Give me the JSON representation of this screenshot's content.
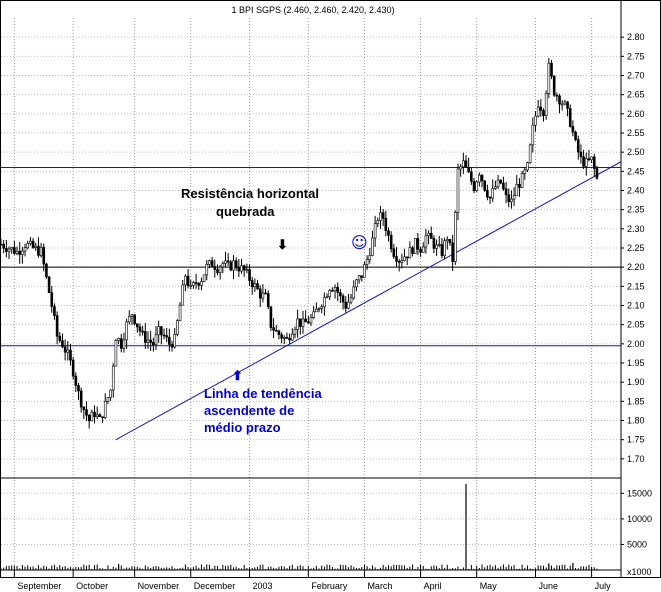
{
  "chart_data": {
    "type": "candlestick",
    "title": "1 BPI SGPS (2.460, 2.460, 2.420, 2.430)",
    "price_axis": {
      "ylim": [
        1.65,
        2.85
      ],
      "ticks": [
        "2.80",
        "2.75",
        "2.70",
        "2.65",
        "2.60",
        "2.55",
        "2.50",
        "2.45",
        "2.40",
        "2.35",
        "2.30",
        "2.25",
        "2.20",
        "2.15",
        "2.10",
        "2.05",
        "2.00",
        "1.95",
        "1.90",
        "1.85",
        "1.80",
        "1.75",
        "1.70"
      ]
    },
    "volume_axis": {
      "ylim": [
        0,
        18000
      ],
      "ticks": [
        "15000",
        "10000",
        "5000"
      ],
      "unit_label": "x1000"
    },
    "months": [
      {
        "label": "September",
        "x": 5
      },
      {
        "label": "October",
        "x": 27
      },
      {
        "label": "November",
        "x": 50
      },
      {
        "label": "December",
        "x": 71
      },
      {
        "label": "2003",
        "x": 93
      },
      {
        "label": "February",
        "x": 115
      },
      {
        "label": "March",
        "x": 136
      },
      {
        "label": "April",
        "x": 157
      },
      {
        "label": "May",
        "x": 178
      },
      {
        "label": "June",
        "x": 200
      },
      {
        "label": "July",
        "x": 221
      }
    ],
    "xlim": [
      0,
      232
    ],
    "price_points": [
      [
        0,
        2.26
      ],
      [
        3,
        2.25
      ],
      [
        6,
        2.24
      ],
      [
        9,
        2.26
      ],
      [
        12,
        2.25
      ],
      [
        15,
        2.24
      ],
      [
        17,
        2.17
      ],
      [
        19,
        2.1
      ],
      [
        21,
        2.02
      ],
      [
        23,
        2.0
      ],
      [
        25,
        1.97
      ],
      [
        27,
        1.93
      ],
      [
        29,
        1.87
      ],
      [
        31,
        1.83
      ],
      [
        33,
        1.8
      ],
      [
        35,
        1.82
      ],
      [
        37,
        1.8
      ],
      [
        39,
        1.84
      ],
      [
        41,
        1.88
      ],
      [
        43,
        2.02
      ],
      [
        45,
        2.0
      ],
      [
        47,
        2.05
      ],
      [
        49,
        2.08
      ],
      [
        51,
        2.05
      ],
      [
        53,
        2.02
      ],
      [
        55,
        2.01
      ],
      [
        57,
        2.0
      ],
      [
        59,
        2.03
      ],
      [
        61,
        2.02
      ],
      [
        63,
        2.0
      ],
      [
        65,
        2.01
      ],
      [
        67,
        2.1
      ],
      [
        69,
        2.18
      ],
      [
        71,
        2.14
      ],
      [
        73,
        2.16
      ],
      [
        75,
        2.17
      ],
      [
        77,
        2.2
      ],
      [
        79,
        2.21
      ],
      [
        81,
        2.2
      ],
      [
        83,
        2.21
      ],
      [
        85,
        2.2
      ],
      [
        87,
        2.21
      ],
      [
        89,
        2.2
      ],
      [
        91,
        2.19
      ],
      [
        93,
        2.17
      ],
      [
        95,
        2.15
      ],
      [
        97,
        2.13
      ],
      [
        99,
        2.12
      ],
      [
        101,
        2.05
      ],
      [
        103,
        2.03
      ],
      [
        105,
        2.02
      ],
      [
        107,
        2.01
      ],
      [
        109,
        2.04
      ],
      [
        111,
        2.06
      ],
      [
        113,
        2.05
      ],
      [
        115,
        2.06
      ],
      [
        117,
        2.07
      ],
      [
        119,
        2.1
      ],
      [
        121,
        2.12
      ],
      [
        123,
        2.15
      ],
      [
        125,
        2.15
      ],
      [
        127,
        2.12
      ],
      [
        129,
        2.1
      ],
      [
        131,
        2.12
      ],
      [
        133,
        2.16
      ],
      [
        135,
        2.18
      ],
      [
        137,
        2.22
      ],
      [
        139,
        2.27
      ],
      [
        141,
        2.33
      ],
      [
        143,
        2.33
      ],
      [
        145,
        2.28
      ],
      [
        147,
        2.24
      ],
      [
        149,
        2.22
      ],
      [
        151,
        2.23
      ],
      [
        153,
        2.24
      ],
      [
        155,
        2.26
      ],
      [
        157,
        2.25
      ],
      [
        159,
        2.28
      ],
      [
        161,
        2.27
      ],
      [
        163,
        2.25
      ],
      [
        165,
        2.24
      ],
      [
        167,
        2.28
      ],
      [
        169,
        2.22
      ],
      [
        171,
        2.45
      ],
      [
        173,
        2.47
      ],
      [
        175,
        2.44
      ],
      [
        177,
        2.41
      ],
      [
        179,
        2.45
      ],
      [
        181,
        2.41
      ],
      [
        183,
        2.38
      ],
      [
        185,
        2.41
      ],
      [
        187,
        2.42
      ],
      [
        189,
        2.38
      ],
      [
        191,
        2.37
      ],
      [
        193,
        2.41
      ],
      [
        195,
        2.43
      ],
      [
        197,
        2.46
      ],
      [
        199,
        2.56
      ],
      [
        201,
        2.63
      ],
      [
        203,
        2.61
      ],
      [
        205,
        2.72
      ],
      [
        207,
        2.66
      ],
      [
        209,
        2.64
      ],
      [
        211,
        2.62
      ],
      [
        213,
        2.58
      ],
      [
        215,
        2.52
      ],
      [
        217,
        2.48
      ],
      [
        219,
        2.47
      ],
      [
        221,
        2.48
      ],
      [
        223,
        2.43
      ]
    ],
    "volume_spikes": [
      {
        "x": 174,
        "value": 16800
      },
      {
        "x": 205,
        "value": 1300
      },
      {
        "x": 44,
        "value": 1200
      },
      {
        "x": 214,
        "value": 1400
      }
    ],
    "horizontal_lines": [
      {
        "price": 2.46,
        "color": "#1a1aa8"
      },
      {
        "price": 2.2,
        "color": "#000000"
      },
      {
        "price": 1.995,
        "color": "#1a1aa8"
      }
    ],
    "trendline": {
      "x1": 43,
      "y1": 1.75,
      "x2": 232,
      "y2": 2.475,
      "color": "#1a1aa8"
    },
    "annotations": {
      "resistance_line1": "Resistência horizontal",
      "resistance_line2": "quebrada",
      "trend_line1": "Linha de tendência",
      "trend_line2": "ascendente de",
      "trend_line3": "médio prazo",
      "smiley": "☺",
      "down_arrow": "⬇",
      "up_arrow": "⬆"
    }
  }
}
